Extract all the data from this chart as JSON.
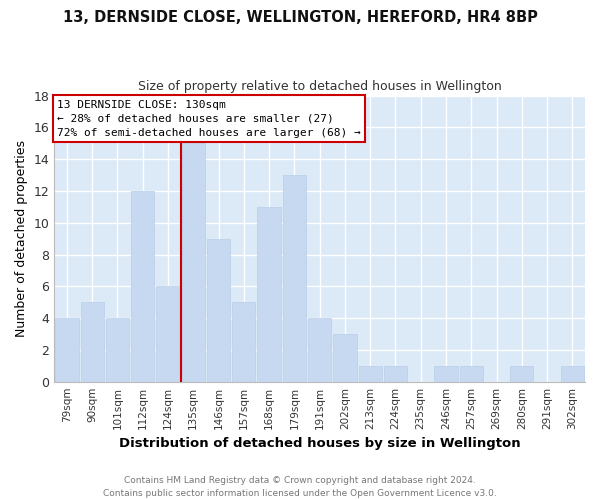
{
  "title": "13, DERNSIDE CLOSE, WELLINGTON, HEREFORD, HR4 8BP",
  "subtitle": "Size of property relative to detached houses in Wellington",
  "xlabel": "Distribution of detached houses by size in Wellington",
  "ylabel": "Number of detached properties",
  "bar_labels": [
    "79sqm",
    "90sqm",
    "101sqm",
    "112sqm",
    "124sqm",
    "135sqm",
    "146sqm",
    "157sqm",
    "168sqm",
    "179sqm",
    "191sqm",
    "202sqm",
    "213sqm",
    "224sqm",
    "235sqm",
    "246sqm",
    "257sqm",
    "269sqm",
    "280sqm",
    "291sqm",
    "302sqm"
  ],
  "bar_values": [
    4,
    5,
    4,
    12,
    6,
    15,
    9,
    5,
    11,
    13,
    4,
    3,
    1,
    1,
    0,
    1,
    1,
    0,
    1,
    0,
    1
  ],
  "bar_color": "#c6d9f0",
  "bar_edge_color": "#b8cfe8",
  "grid_color": "#ffffff",
  "bg_color": "#dce9f7",
  "reference_line_color": "#cc0000",
  "ylim": [
    0,
    18
  ],
  "yticks": [
    0,
    2,
    4,
    6,
    8,
    10,
    12,
    14,
    16,
    18
  ],
  "annotation_title": "13 DERNSIDE CLOSE: 130sqm",
  "annotation_line1": "← 28% of detached houses are smaller (27)",
  "annotation_line2": "72% of semi-detached houses are larger (68) →",
  "annotation_box_color": "#ffffff",
  "annotation_box_edge": "#cc0000",
  "footer_line1": "Contains HM Land Registry data © Crown copyright and database right 2024.",
  "footer_line2": "Contains public sector information licensed under the Open Government Licence v3.0."
}
